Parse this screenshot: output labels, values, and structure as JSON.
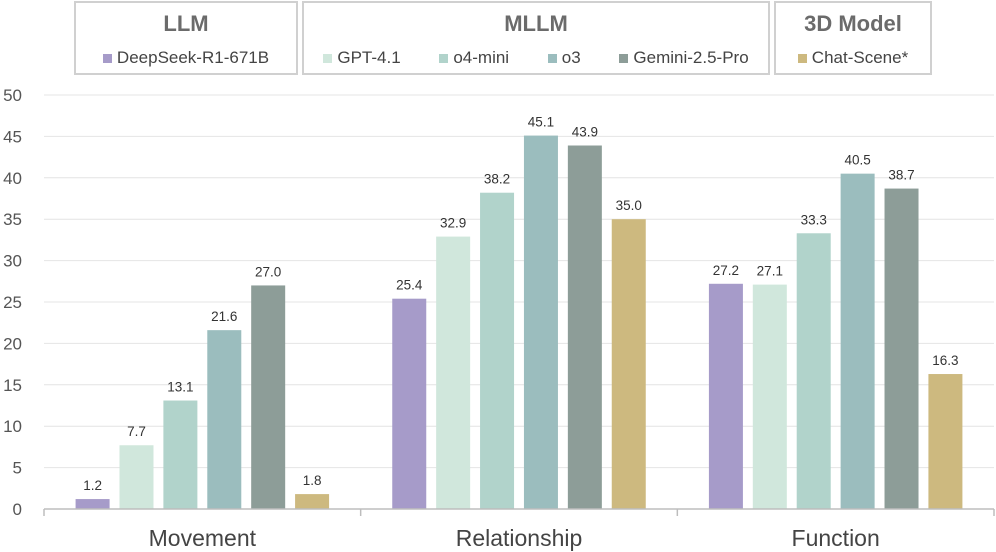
{
  "chart_data": {
    "type": "bar",
    "categories": [
      "Movement",
      "Relationship",
      "Function"
    ],
    "ylim": [
      0,
      50
    ],
    "yticks": [
      "0",
      "5",
      "10",
      "15",
      "20",
      "25",
      "30",
      "35",
      "40",
      "45",
      "50"
    ],
    "xlabel": "",
    "ylabel": "",
    "series": [
      {
        "name": "DeepSeek-R1-671B",
        "color": "#a69bc9",
        "values": [
          1.2,
          25.4,
          27.2
        ],
        "labels": [
          "1.2",
          "25.4",
          "27.2"
        ]
      },
      {
        "name": "GPT-4.1",
        "color": "#d0e7dc",
        "values": [
          7.7,
          32.9,
          27.1
        ],
        "labels": [
          "7.7",
          "32.9",
          "27.1"
        ]
      },
      {
        "name": "o4-mini",
        "color": "#b1d3cb",
        "values": [
          13.1,
          38.2,
          33.3
        ],
        "labels": [
          "13.1",
          "38.2",
          "33.3"
        ]
      },
      {
        "name": "o3",
        "color": "#9bbdbe",
        "values": [
          21.6,
          45.1,
          40.5
        ],
        "labels": [
          "21.6",
          "45.1",
          "40.5"
        ]
      },
      {
        "name": "Gemini-2.5-Pro",
        "color": "#8d9d98",
        "values": [
          27.0,
          43.9,
          38.7
        ],
        "labels": [
          "27.0",
          "43.9",
          "38.7"
        ]
      },
      {
        "name": "Chat-Scene*",
        "color": "#cdb97f",
        "values": [
          1.8,
          35.0,
          16.3
        ],
        "labels": [
          "1.8",
          "35.0",
          "16.3"
        ]
      }
    ],
    "legend_groups": [
      {
        "title": "LLM",
        "series": [
          "DeepSeek-R1-671B"
        ]
      },
      {
        "title": "MLLM",
        "series": [
          "GPT-4.1",
          "o4-mini",
          "o3",
          "Gemini-2.5-Pro"
        ]
      },
      {
        "title": "3D Model",
        "series": [
          "Chat-Scene*"
        ]
      }
    ],
    "grid": true,
    "legend_position": "top"
  }
}
